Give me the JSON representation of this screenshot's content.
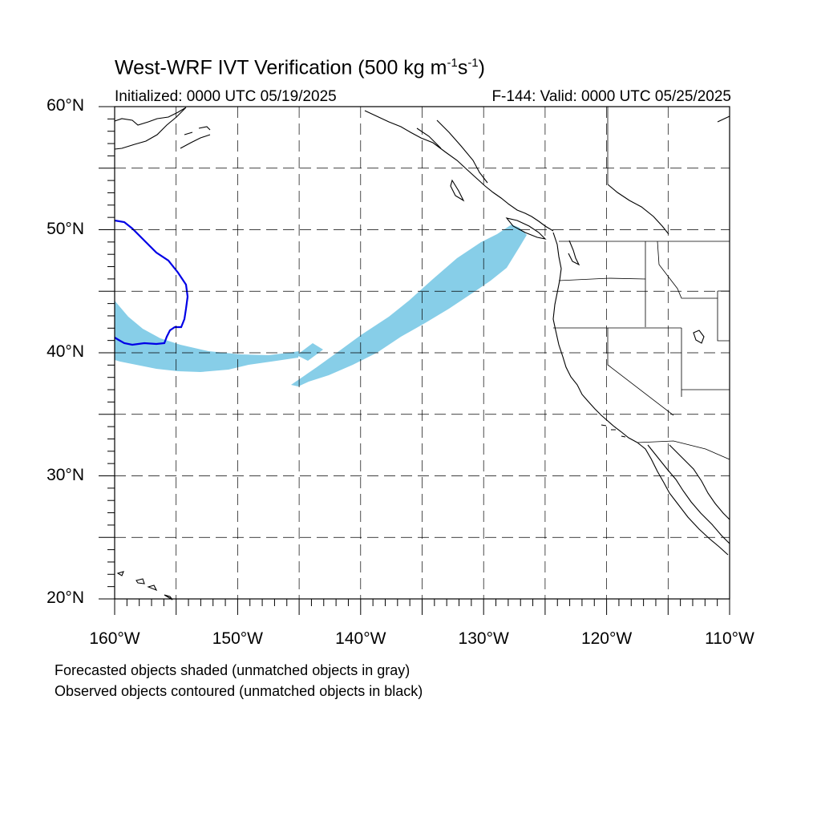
{
  "title": {
    "main": "West-WRF IVT Verification (500 kg m",
    "sup1": "-1",
    "mid": "s",
    "sup2": "-1",
    "end": ")"
  },
  "subtitle": {
    "initialized": "Initialized: 0000 UTC 05/19/2025",
    "valid": "F-144: Valid: 0000 UTC 05/25/2025"
  },
  "map": {
    "lon_range": [
      -160,
      -110
    ],
    "lat_range": [
      20,
      60
    ],
    "grid_lon_step": 5,
    "grid_lat_step": 5,
    "lat_labels": [
      "20°N",
      "30°N",
      "40°N",
      "50°N",
      "60°N"
    ],
    "lon_labels": [
      "160°W",
      "150°W",
      "140°W",
      "130°W",
      "120°W",
      "110°W"
    ],
    "forecast_color": "#87CEE8",
    "observed_color": "#0000E6"
  },
  "notes": [
    "Forecasted objects shaded (unmatched objects in gray)",
    "Observed objects contoured (unmatched objects in black)"
  ]
}
